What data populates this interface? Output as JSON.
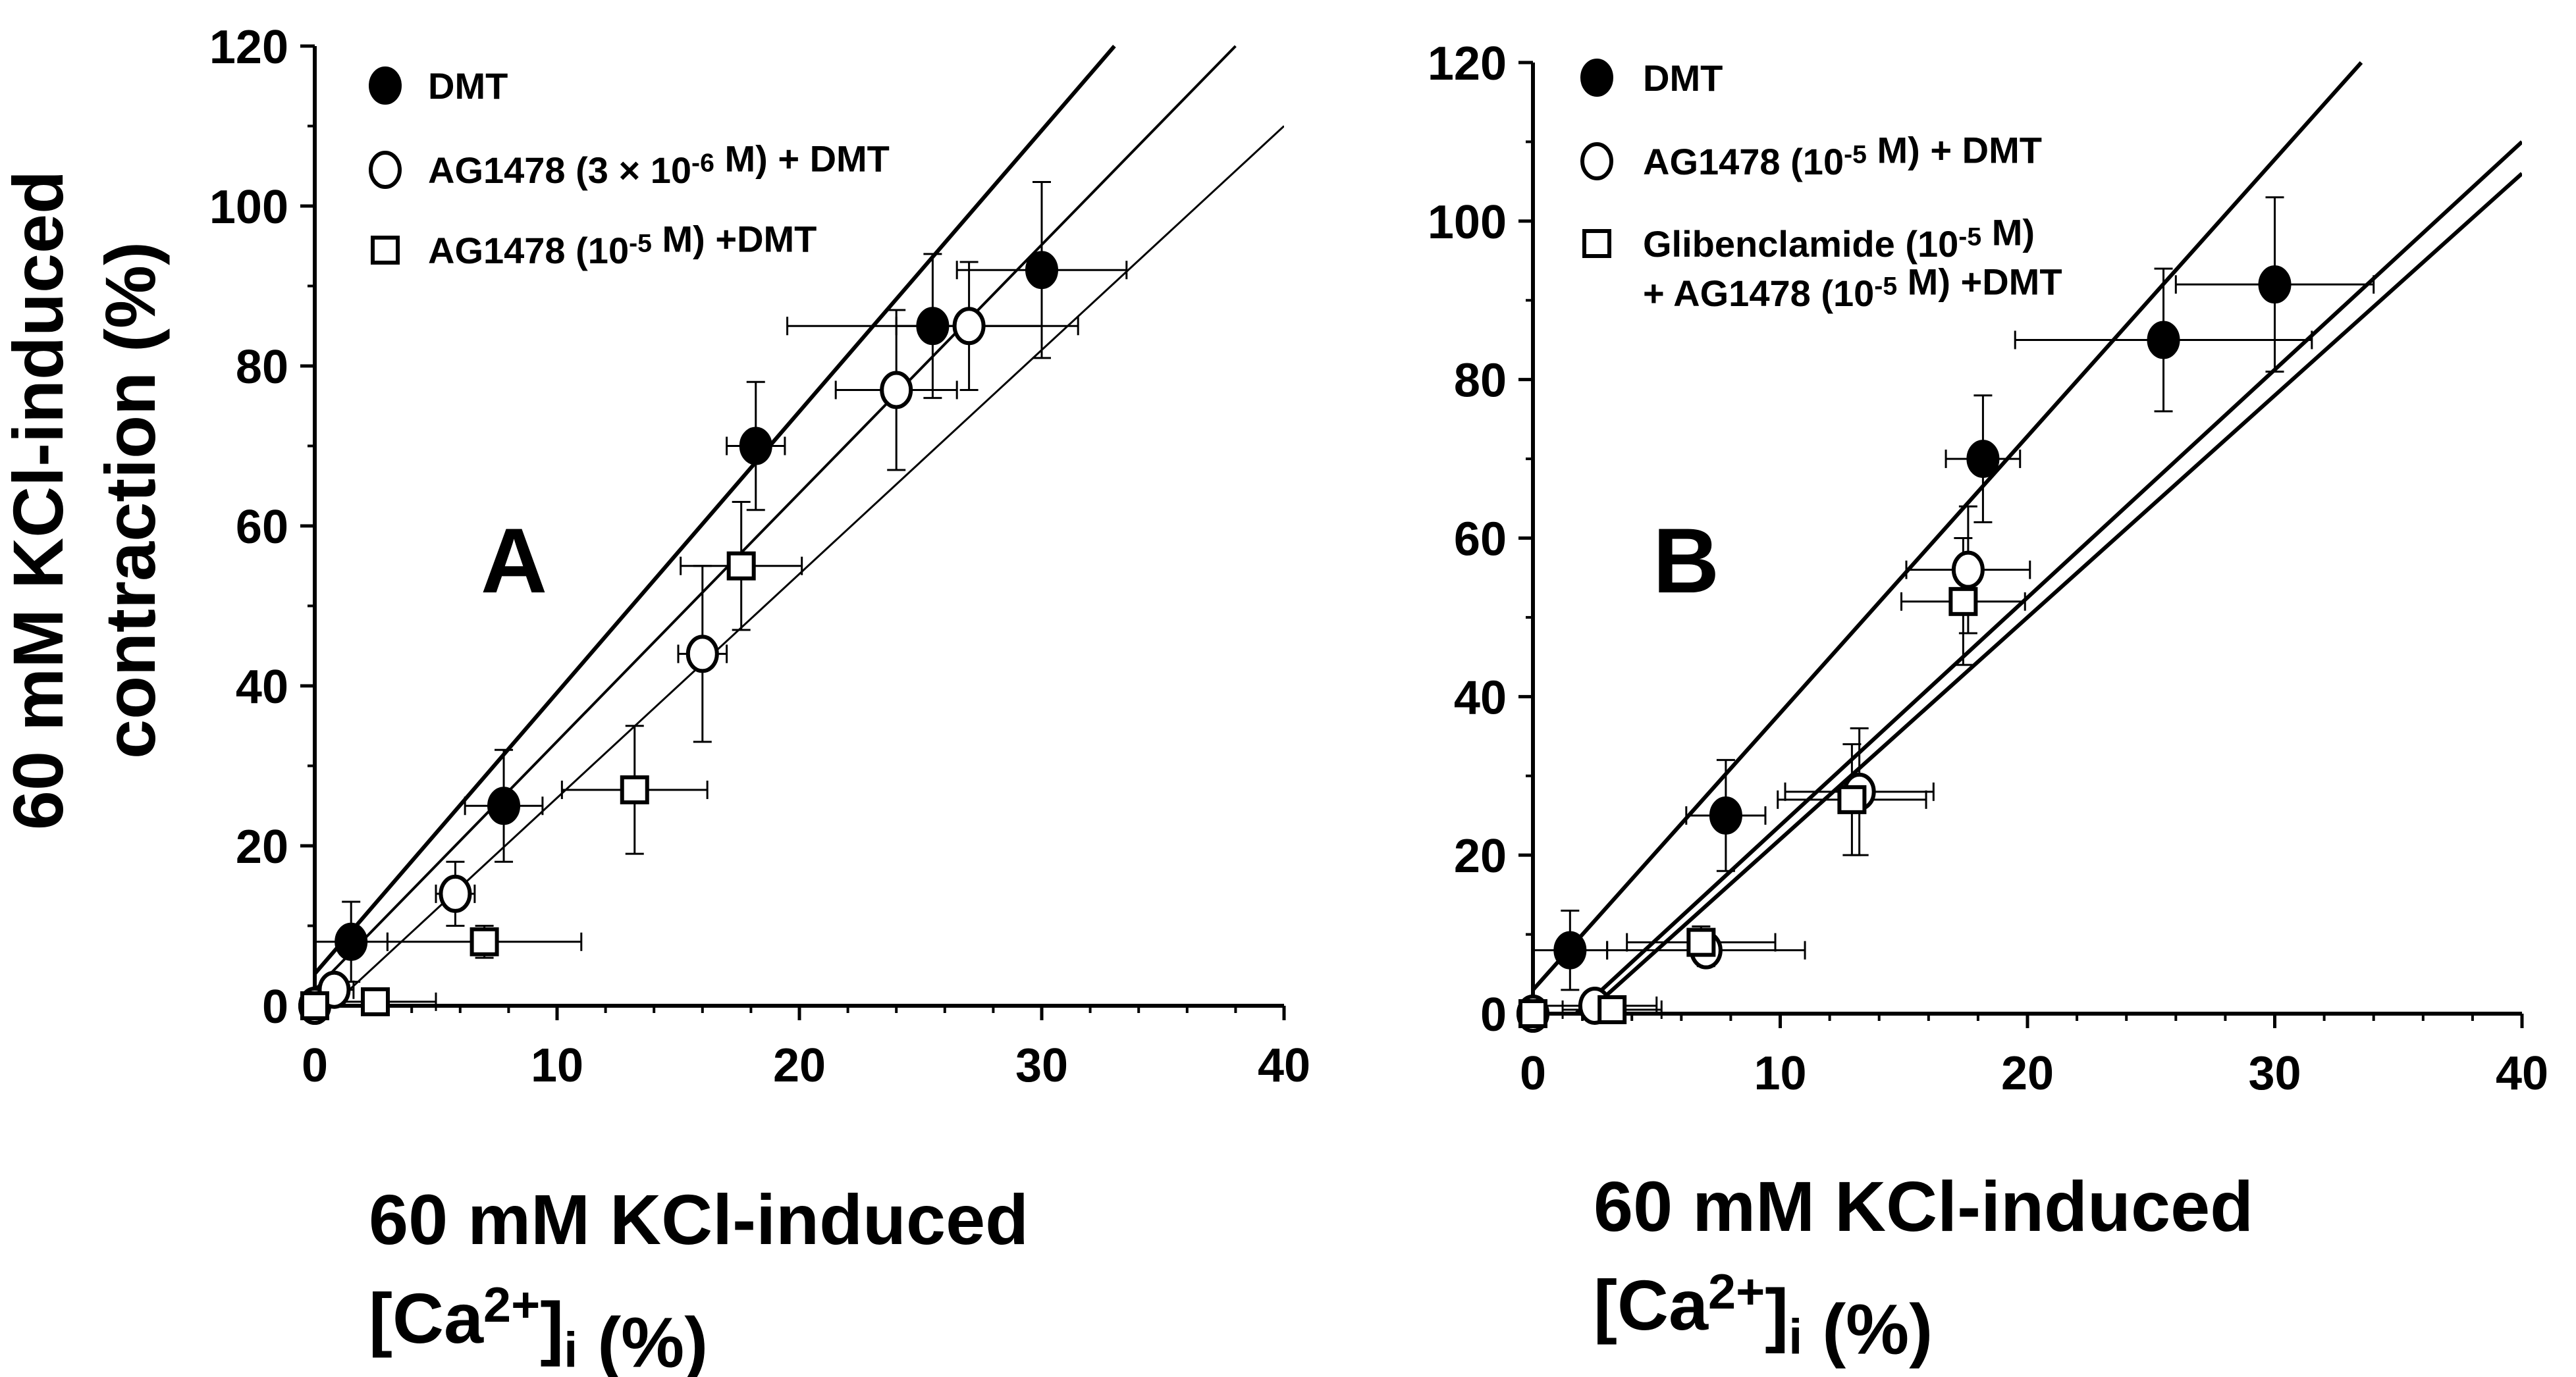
{
  "chart_data": [
    {
      "type": "scatter",
      "panel_label": "A",
      "title": "",
      "xlabel": "60 mM KCl-induced",
      "xlabel_line2": "[Ca2+]i (%)",
      "ylabel_line1": "60 mM KCl-induced",
      "ylabel_line2": "contraction (%)",
      "xlim": [
        0,
        40
      ],
      "ylim": [
        0,
        120
      ],
      "xticks": [
        0,
        10,
        20,
        30,
        40
      ],
      "yticks": [
        0,
        20,
        40,
        60,
        80,
        100,
        120
      ],
      "grid": false,
      "legend_placement": "top-left",
      "legend": [
        {
          "text": "DMT",
          "marker": "filled-circle"
        },
        {
          "text": "AG1478 (3 × 10-6 M) + DMT",
          "marker": "open-circle"
        },
        {
          "text": "AG1478 (10-5 M) +DMT",
          "marker": "open-square"
        }
      ],
      "series": [
        {
          "name": "DMT",
          "marker": "filled-circle",
          "x": [
            0,
            1.5,
            7.8,
            18.2,
            25.5,
            30
          ],
          "y": [
            0,
            8,
            25,
            70,
            85,
            92
          ],
          "xerr": [
            0,
            1.5,
            1.6,
            1.2,
            6,
            3.5
          ],
          "yerr": [
            0,
            5,
            7,
            8,
            9,
            11
          ],
          "fit": {
            "x": [
              0,
              33
            ],
            "y": [
              4,
              120
            ]
          }
        },
        {
          "name": "AG1478 (3 × 10-6 M) + DMT",
          "marker": "open-circle",
          "x": [
            0,
            0.8,
            5.8,
            16,
            24,
            27
          ],
          "y": [
            0,
            2,
            14,
            44,
            77,
            85
          ],
          "xerr": [
            0,
            0.8,
            0.8,
            1,
            2.5,
            3
          ],
          "yerr": [
            0,
            1.5,
            4,
            11,
            10,
            8
          ],
          "fit": {
            "x": [
              0,
              38
            ],
            "y": [
              2,
              120
            ]
          }
        },
        {
          "name": "AG1478 (10-5 M) +DMT",
          "marker": "open-square",
          "x": [
            0,
            2.5,
            7,
            13.2,
            17.6
          ],
          "y": [
            0,
            0.5,
            8,
            27,
            55
          ],
          "xerr": [
            0,
            2.5,
            4,
            3,
            2.5
          ],
          "yerr": [
            0,
            0.5,
            2,
            8,
            8
          ],
          "fit": {
            "x": [
              0,
              40
            ],
            "y": [
              -2,
              110
            ]
          }
        }
      ]
    },
    {
      "type": "scatter",
      "panel_label": "B",
      "title": "",
      "xlabel": "60 mM KCl-induced",
      "xlabel_line2": "[Ca2+]i (%)",
      "xlim": [
        0,
        40
      ],
      "ylim": [
        0,
        120
      ],
      "xticks": [
        0,
        10,
        20,
        30,
        40
      ],
      "yticks": [
        0,
        20,
        40,
        60,
        80,
        100,
        120
      ],
      "grid": false,
      "legend_placement": "top-left",
      "legend": [
        {
          "text": "DMT",
          "marker": "filled-circle"
        },
        {
          "text": "AG1478 (10-5 M) + DMT",
          "marker": "open-circle"
        },
        {
          "text": "Glibenclamide (10-5 M)",
          "text2": "+ AG1478 (10-5 M) +DMT",
          "marker": "open-square"
        }
      ],
      "series": [
        {
          "name": "DMT",
          "marker": "filled-circle",
          "x": [
            0,
            1.5,
            7.8,
            18.2,
            25.5,
            30
          ],
          "y": [
            0,
            8,
            25,
            70,
            85,
            92
          ],
          "xerr": [
            0,
            1.5,
            1.6,
            1.5,
            6,
            4
          ],
          "yerr": [
            0,
            5,
            7,
            8,
            9,
            11
          ],
          "fit": {
            "x": [
              0,
              33.5
            ],
            "y": [
              3,
              120
            ]
          }
        },
        {
          "name": "AG1478 (10-5 M) + DMT",
          "marker": "open-circle",
          "x": [
            0,
            2.5,
            7,
            13.2,
            17.6
          ],
          "y": [
            0,
            1,
            8,
            28,
            56
          ],
          "xerr": [
            0,
            2.5,
            4,
            3,
            2.5
          ],
          "yerr": [
            0,
            1,
            2,
            8,
            8
          ],
          "fit": {
            "x": [
              0,
              40
            ],
            "y": [
              -5,
              110
            ]
          }
        },
        {
          "name": "Glibenclamide (10-5 M) + AG1478 (10-5 M) +DMT",
          "marker": "open-square",
          "x": [
            0,
            3.2,
            6.8,
            12.9,
            17.4
          ],
          "y": [
            0,
            0.5,
            9,
            27,
            52
          ],
          "xerr": [
            0,
            2,
            3,
            3,
            2.5
          ],
          "yerr": [
            0,
            0.5,
            2,
            7,
            8
          ],
          "fit": {
            "x": [
              0,
              40
            ],
            "y": [
              -6,
              106
            ]
          }
        }
      ]
    }
  ]
}
